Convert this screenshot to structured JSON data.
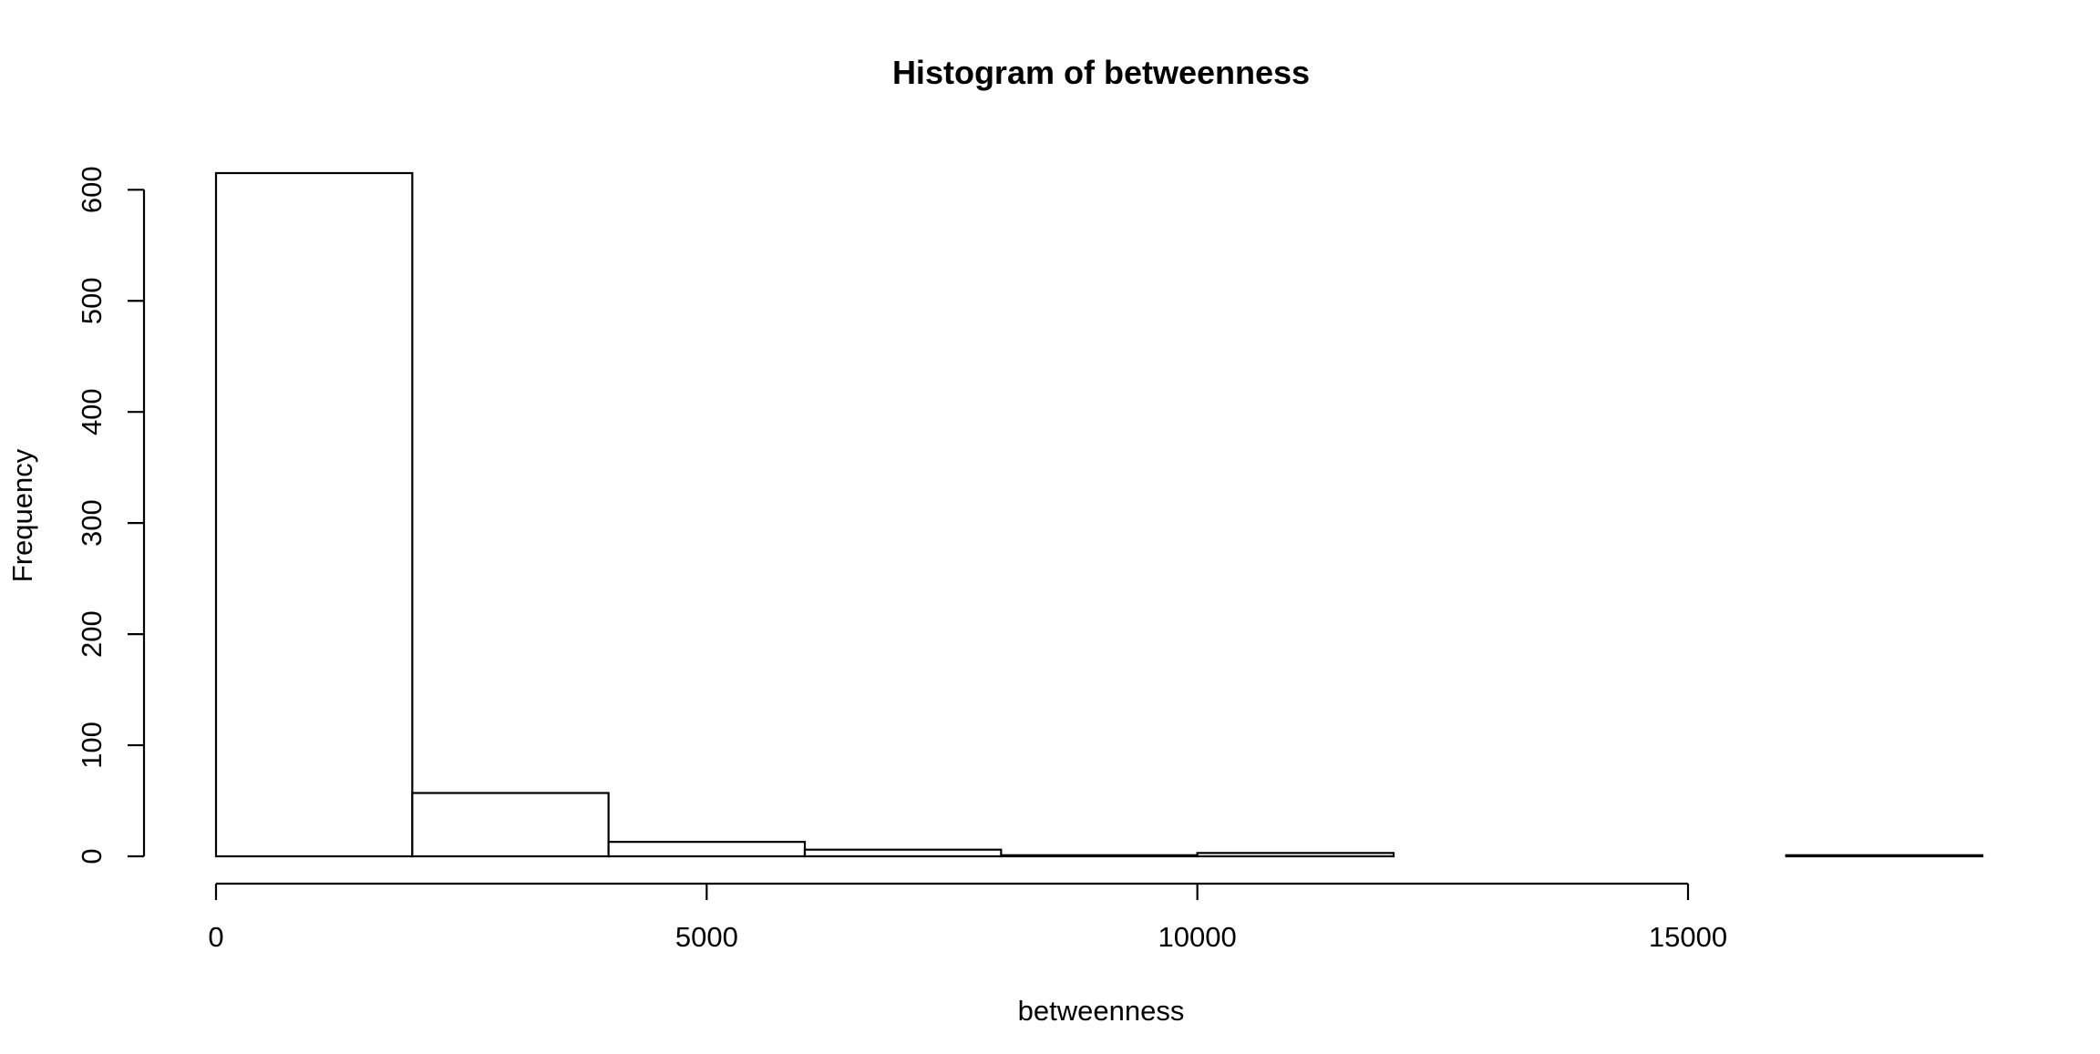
{
  "chart_data": {
    "type": "bar",
    "title": "Histogram of betweenness",
    "xlabel": "betweenness",
    "ylabel": "Frequency",
    "bin_edges": [
      0,
      2000,
      4000,
      6000,
      8000,
      10000,
      12000,
      14000,
      16000,
      18000
    ],
    "values": [
      615,
      57,
      13,
      6,
      1,
      3,
      0,
      0,
      1
    ],
    "xlim": [
      0,
      18000
    ],
    "ylim": [
      0,
      615
    ],
    "x_ticks": [
      0,
      5000,
      10000,
      15000
    ],
    "x_tick_labels": [
      "0",
      "5000",
      "10000",
      "15000"
    ],
    "y_ticks": [
      0,
      100,
      200,
      300,
      400,
      500,
      600
    ],
    "y_tick_labels": [
      "0",
      "100",
      "200",
      "300",
      "400",
      "500",
      "600"
    ],
    "grid": false,
    "legend": "none"
  }
}
